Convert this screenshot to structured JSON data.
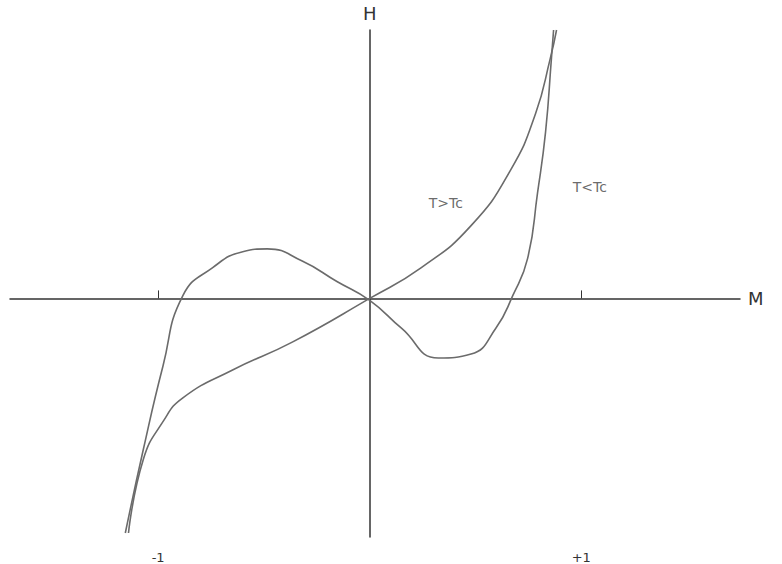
{
  "chart_data": {
    "type": "line",
    "x_label": "M",
    "y_label": "H",
    "xlim": [
      -1.7,
      1.75
    ],
    "xticks": [
      -1,
      {
        "value": 1,
        "label": "+1"
      }
    ],
    "ylim": [
      -1.2,
      1.35
    ],
    "grid": false,
    "tick_labels": "x",
    "color": "#6b6b6b",
    "series": [
      {
        "x": [
          -1.14,
          -1.07,
          -0.977,
          -0.883,
          -0.648,
          -0.366,
          0,
          0.244,
          0.479,
          0.667,
          0.784,
          0.854,
          0.883
        ],
        "values": [
          -1.18,
          -0.81,
          -0.62,
          -0.5,
          -0.36,
          -0.22,
          0,
          0.155,
          0.366,
          0.648,
          0.93,
          1.21,
          1.35
        ]
      },
      {
        "x": [
          -1.155,
          -1.07,
          -0.977,
          -0.883,
          -0.742,
          -0.6,
          -0.484,
          -0.319,
          -0.155,
          0,
          0.15,
          0.324,
          0.479,
          0.596,
          0.676,
          0.746,
          0.793,
          0.831,
          0.859,
          0.869
        ],
        "values": [
          -1.18,
          -0.76,
          -0.34,
          0.014,
          0.155,
          0.235,
          0.249,
          0.188,
          0.085,
          -0.01,
          -0.15,
          -0.3,
          -0.28,
          -0.15,
          0.014,
          0.2,
          0.53,
          0.836,
          1.21,
          1.35
        ]
      }
    ],
    "annotations": [
      {
        "text": "T>Tc",
        "x": 0.36,
        "y": 0.48
      },
      {
        "text": "T<Tc",
        "x": 1.04,
        "y": 0.56
      }
    ]
  }
}
